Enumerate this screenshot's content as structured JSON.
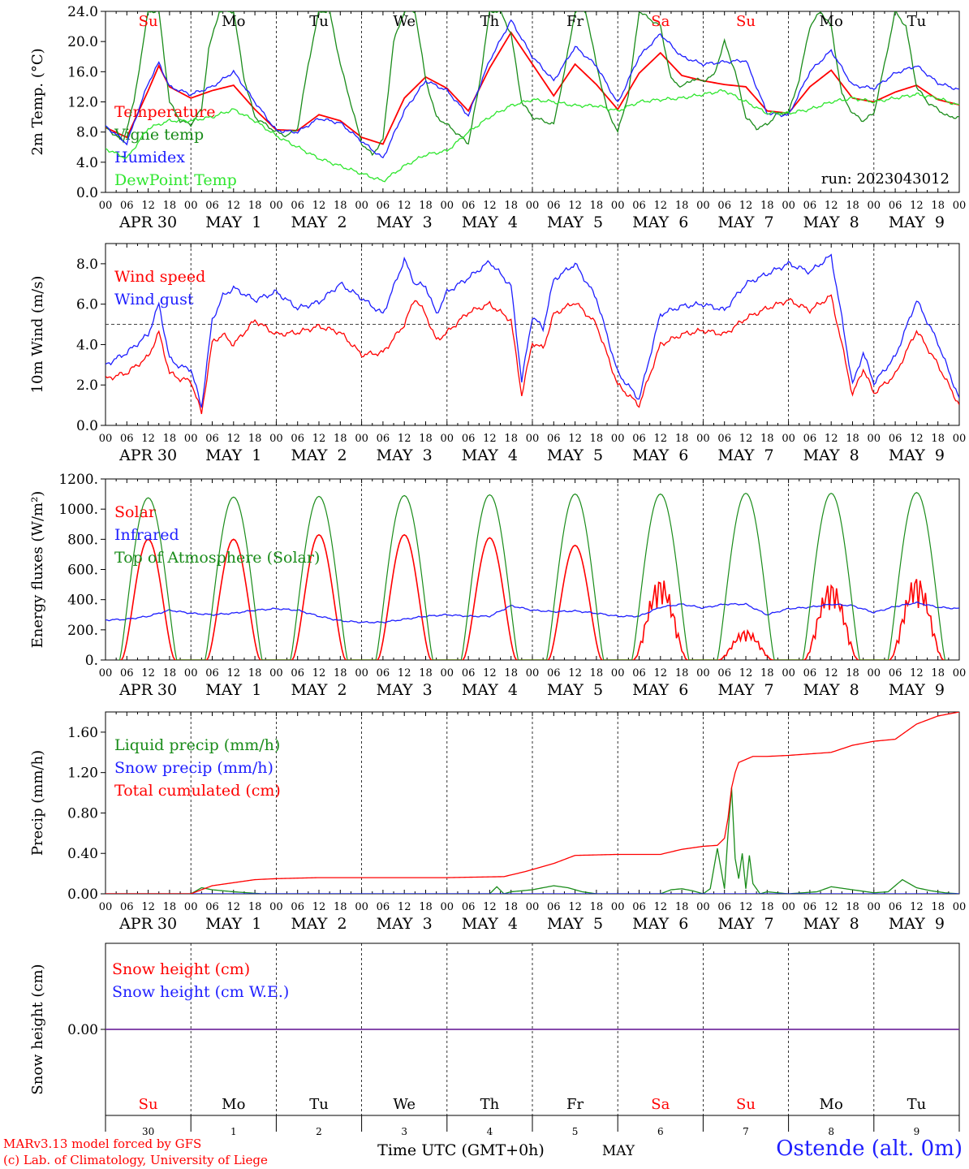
{
  "colors": {
    "red": "#ff0000",
    "green": "#1a8c1a",
    "blue": "#1e1eff",
    "lime": "#2ee62e",
    "purple": "#7030a0"
  },
  "x_axis": {
    "hour_ticks": [
      "00",
      "06",
      "12",
      "18"
    ],
    "date_labels": [
      "APR 30",
      "MAY  1",
      "MAY  2",
      "MAY  3",
      "MAY  4",
      "MAY  5",
      "MAY  6",
      "MAY  7",
      "MAY  8",
      "MAY  9"
    ],
    "weekdays": [
      "Su",
      "Mo",
      "Tu",
      "We",
      "Th",
      "Fr",
      "Sa",
      "Su",
      "Mo",
      "Tu"
    ],
    "weekday_colors": [
      "red",
      "black",
      "black",
      "black",
      "black",
      "black",
      "red",
      "red",
      "black",
      "black"
    ],
    "day_numbers": [
      "30",
      "1",
      "2",
      "3",
      "4",
      "5",
      "6",
      "7",
      "8",
      "9"
    ],
    "bottom_center_label": "Time UTC (GMT+0h)",
    "bottom_month": "MAY"
  },
  "footer": {
    "credit_line1": "MARv3.13 model forced by GFS",
    "credit_line2": "(c) Lab. of Climatology, University of Liege",
    "station": "Ostende (alt. 0m)"
  },
  "chart_data": [
    {
      "type": "line",
      "ylabel": "2m Temp. (°C)",
      "ylim": [
        0,
        24
      ],
      "yticks": [
        "0.0",
        "4.0",
        "8.0",
        "12.0",
        "16.0",
        "20.0",
        "24.0"
      ],
      "annotation": "run: 2023043012",
      "x_unit": "hours since APR 30 00 UTC",
      "series": [
        {
          "name": "Temperature",
          "color": "red",
          "x": [
            0,
            6,
            12,
            15,
            18,
            24,
            30,
            36,
            42,
            48,
            54,
            60,
            66,
            72,
            78,
            84,
            90,
            96,
            102,
            108,
            114,
            120,
            126,
            132,
            138,
            144,
            150,
            156,
            162,
            168,
            174,
            180,
            186,
            192,
            198,
            204,
            210,
            216,
            222,
            228,
            234,
            240
          ],
          "values": [
            8.6,
            7.3,
            13.5,
            16.8,
            14.0,
            12.5,
            13.5,
            14.2,
            11.0,
            8.3,
            8.2,
            10.3,
            9.5,
            7.3,
            6.4,
            12.5,
            15.3,
            13.8,
            10.8,
            16.5,
            21.2,
            17.0,
            12.8,
            17.0,
            14.3,
            11.0,
            15.8,
            18.5,
            15.5,
            14.8,
            14.3,
            14.0,
            10.8,
            10.5,
            14.0,
            16.2,
            12.5,
            12.0,
            13.3,
            14.2,
            12.3,
            11.6
          ]
        },
        {
          "name": "Vigne temp",
          "color": "green",
          "x": [
            0,
            5,
            8,
            12,
            15,
            18,
            21,
            24,
            27,
            29,
            32,
            36,
            39,
            42,
            48,
            51,
            54,
            57,
            60,
            63,
            66,
            72,
            75,
            78,
            81,
            84,
            87,
            90,
            93,
            96,
            102,
            105,
            108,
            111,
            114,
            117,
            120,
            126,
            129,
            132,
            135,
            138,
            141,
            144,
            147,
            150,
            153,
            156,
            159,
            162,
            165,
            168,
            171,
            174,
            177,
            180,
            183,
            186,
            189,
            192,
            195,
            198,
            201,
            204,
            207,
            210,
            213,
            216,
            219,
            222,
            225,
            228,
            231,
            234,
            237,
            240
          ],
          "values": [
            8.6,
            6.8,
            12.0,
            24.0,
            24.0,
            12.0,
            9.5,
            9.0,
            11.0,
            19.0,
            24.0,
            24.0,
            15.0,
            10.0,
            8.0,
            7.5,
            8.5,
            17.0,
            24.0,
            24.0,
            17.0,
            6.5,
            5.0,
            7.0,
            20.0,
            24.0,
            24.0,
            15.0,
            10.0,
            9.0,
            6.5,
            14.0,
            24.0,
            24.0,
            21.0,
            12.0,
            10.0,
            9.0,
            16.0,
            24.0,
            24.0,
            17.0,
            11.0,
            8.0,
            13.0,
            24.0,
            23.0,
            22.0,
            15.0,
            14.0,
            15.0,
            14.8,
            15.5,
            20.0,
            16.0,
            10.0,
            8.5,
            9.0,
            10.5,
            10.5,
            15.0,
            22.0,
            24.0,
            22.0,
            13.0,
            10.5,
            9.5,
            10.5,
            17.0,
            24.0,
            22.0,
            14.0,
            12.0,
            11.0,
            10.0,
            10.0
          ]
        },
        {
          "name": "Humidex",
          "color": "blue",
          "x": [
            0,
            6,
            12,
            15,
            18,
            24,
            30,
            36,
            42,
            48,
            54,
            60,
            66,
            72,
            78,
            84,
            90,
            96,
            102,
            108,
            114,
            120,
            126,
            132,
            138,
            144,
            150,
            156,
            162,
            168,
            174,
            180,
            186,
            192,
            198,
            204,
            210,
            216,
            222,
            228,
            234,
            240
          ],
          "values": [
            8.8,
            6.5,
            14.5,
            17.2,
            14.0,
            13.0,
            14.0,
            16.0,
            12.0,
            8.2,
            8.0,
            9.8,
            9.2,
            6.8,
            4.5,
            10.8,
            14.8,
            13.5,
            10.2,
            17.5,
            22.8,
            18.0,
            14.8,
            19.3,
            16.8,
            11.8,
            18.0,
            21.0,
            18.0,
            17.0,
            17.3,
            17.5,
            10.5,
            10.2,
            16.0,
            18.8,
            14.2,
            13.8,
            15.8,
            16.8,
            14.5,
            13.6
          ]
        },
        {
          "name": "DewPoint Temp",
          "color": "lime",
          "x": [
            0,
            6,
            12,
            18,
            24,
            30,
            36,
            42,
            48,
            54,
            60,
            66,
            72,
            78,
            84,
            90,
            96,
            102,
            108,
            114,
            120,
            126,
            132,
            138,
            144,
            150,
            156,
            162,
            168,
            174,
            180,
            186,
            192,
            198,
            204,
            210,
            216,
            222,
            228,
            234,
            240
          ],
          "values": [
            5.8,
            4.5,
            8.5,
            9.5,
            9.5,
            10.0,
            11.0,
            9.5,
            7.5,
            6.0,
            4.5,
            3.5,
            2.5,
            1.5,
            3.5,
            5.0,
            5.5,
            8.0,
            10.0,
            11.5,
            12.3,
            12.0,
            11.5,
            11.5,
            10.8,
            12.0,
            12.3,
            12.5,
            13.0,
            13.5,
            12.0,
            10.5,
            10.5,
            11.0,
            12.0,
            12.5,
            12.0,
            12.5,
            13.0,
            12.5,
            11.5
          ]
        }
      ]
    },
    {
      "type": "line",
      "ylabel": "10m Wind (m/s)",
      "ylim": [
        0,
        9
      ],
      "yticks": [
        "0.0",
        "2.0",
        "4.0",
        "6.0",
        "8.0"
      ],
      "reference_line": 5.0,
      "x_unit": "hours since APR 30 00 UTC",
      "series": [
        {
          "name": "Wind speed",
          "color": "red",
          "x": [
            0,
            6,
            12,
            15,
            18,
            21,
            24,
            27,
            30,
            33,
            36,
            42,
            48,
            54,
            60,
            66,
            72,
            78,
            84,
            87,
            90,
            93,
            96,
            102,
            108,
            114,
            117,
            120,
            123,
            126,
            132,
            138,
            144,
            150,
            156,
            162,
            168,
            174,
            180,
            186,
            192,
            198,
            204,
            207,
            210,
            213,
            216,
            222,
            228,
            234,
            240
          ],
          "values": [
            2.3,
            2.6,
            3.4,
            4.6,
            2.6,
            2.3,
            2.2,
            0.6,
            4.1,
            4.5,
            4.0,
            5.2,
            4.5,
            4.6,
            4.9,
            4.6,
            3.5,
            3.6,
            5.0,
            6.3,
            5.5,
            4.2,
            4.6,
            5.6,
            6.0,
            5.2,
            1.5,
            4.1,
            3.8,
            5.5,
            6.1,
            5.0,
            2.0,
            1.0,
            4.0,
            4.5,
            4.7,
            4.5,
            5.3,
            5.8,
            6.2,
            5.7,
            6.4,
            4.0,
            1.5,
            2.8,
            1.6,
            2.5,
            4.7,
            3.0,
            1.0
          ]
        },
        {
          "name": "Wind gust",
          "color": "blue",
          "x": [
            0,
            6,
            12,
            15,
            18,
            21,
            24,
            27,
            30,
            33,
            36,
            42,
            48,
            54,
            60,
            66,
            72,
            78,
            84,
            87,
            90,
            93,
            96,
            102,
            108,
            114,
            117,
            120,
            123,
            126,
            132,
            138,
            144,
            150,
            156,
            162,
            168,
            174,
            180,
            186,
            192,
            198,
            204,
            207,
            210,
            213,
            216,
            222,
            228,
            234,
            240
          ],
          "values": [
            3.0,
            3.6,
            4.5,
            6.0,
            3.3,
            2.9,
            2.8,
            0.9,
            5.2,
            6.4,
            6.8,
            6.2,
            6.6,
            5.8,
            6.1,
            7.0,
            6.3,
            5.5,
            8.2,
            7.0,
            6.9,
            5.5,
            6.6,
            7.3,
            8.1,
            6.9,
            2.2,
            5.4,
            4.8,
            7.2,
            8.0,
            6.3,
            2.6,
            1.3,
            5.5,
            5.9,
            6.0,
            5.7,
            7.0,
            7.5,
            8.0,
            7.6,
            8.4,
            5.3,
            2.0,
            3.6,
            2.1,
            3.4,
            6.2,
            4.1,
            1.3
          ]
        }
      ]
    },
    {
      "type": "line",
      "ylabel": "Energy fluxes (W/m²)",
      "ylim": [
        0,
        1200
      ],
      "yticks": [
        "0.",
        "200.",
        "400.",
        "600.",
        "800.",
        "1000.",
        "1200."
      ],
      "x_unit": "hours since APR 30 00 UTC",
      "daily_solar_peak": [
        800,
        800,
        830,
        830,
        810,
        760,
        550,
        200,
        520,
        560
      ],
      "daily_toa_peak": [
        1075,
        1080,
        1085,
        1090,
        1095,
        1100,
        1100,
        1105,
        1105,
        1110
      ],
      "series": [
        {
          "name": "Solar",
          "color": "red"
        },
        {
          "name": "Infrared",
          "color": "blue",
          "x": [
            0,
            6,
            12,
            18,
            24,
            30,
            36,
            42,
            48,
            54,
            60,
            66,
            72,
            78,
            84,
            90,
            96,
            102,
            108,
            114,
            120,
            126,
            132,
            138,
            144,
            150,
            156,
            162,
            168,
            174,
            180,
            186,
            192,
            198,
            204,
            210,
            216,
            222,
            228,
            234,
            240
          ],
          "values": [
            265,
            270,
            290,
            330,
            310,
            300,
            310,
            330,
            340,
            330,
            290,
            260,
            250,
            250,
            270,
            290,
            300,
            290,
            290,
            360,
            330,
            320,
            325,
            310,
            290,
            290,
            350,
            370,
            345,
            370,
            370,
            300,
            340,
            350,
            370,
            360,
            315,
            355,
            380,
            350,
            340
          ]
        },
        {
          "name": "Top of Atmosphere (Solar)",
          "color": "green"
        }
      ]
    },
    {
      "type": "line",
      "ylabel": "Precip (mm/h)",
      "ylim": [
        0,
        1.8
      ],
      "yticks": [
        "0.00",
        "0.40",
        "0.80",
        "1.20",
        "1.60"
      ],
      "x_unit": "hours since APR 30 00 UTC",
      "series": [
        {
          "name": "Liquid precip (mm/h)",
          "color": "green",
          "x": [
            0,
            24,
            27,
            30,
            33,
            36,
            40,
            44,
            96,
            108,
            110,
            112,
            114,
            120,
            126,
            130,
            134,
            138,
            144,
            156,
            159,
            162,
            165,
            168,
            170,
            172,
            174,
            175,
            176,
            177,
            178,
            179,
            180,
            181,
            182,
            183,
            184,
            186,
            192,
            200,
            204,
            208,
            212,
            216,
            220,
            224,
            226,
            228,
            232,
            236,
            240
          ],
          "values": [
            0,
            0,
            0.06,
            0.04,
            0.03,
            0.02,
            0.01,
            0,
            0,
            0,
            0.07,
            0,
            0.02,
            0.04,
            0.08,
            0.06,
            0.02,
            0,
            0,
            0,
            0.04,
            0.05,
            0.03,
            0,
            0.05,
            0.45,
            0.05,
            0.6,
            1.05,
            0.35,
            0.15,
            0.4,
            0.05,
            0.38,
            0.1,
            0.05,
            0,
            0.02,
            0,
            0.02,
            0.07,
            0.05,
            0.03,
            0.01,
            0.02,
            0.14,
            0.1,
            0.06,
            0.03,
            0.01,
            0
          ]
        },
        {
          "name": "Snow precip (mm/h)",
          "color": "blue",
          "x": [
            0,
            240
          ],
          "values": [
            0,
            0
          ]
        },
        {
          "name": "Total cumulated (cm)",
          "color": "red",
          "x": [
            0,
            24,
            27,
            30,
            36,
            42,
            48,
            60,
            96,
            112,
            118,
            126,
            132,
            144,
            156,
            162,
            168,
            172,
            174,
            175,
            176,
            177,
            178,
            180,
            182,
            186,
            192,
            204,
            210,
            216,
            222,
            228,
            234,
            240
          ],
          "values": [
            0,
            0,
            0.04,
            0.08,
            0.11,
            0.14,
            0.15,
            0.16,
            0.16,
            0.17,
            0.22,
            0.3,
            0.38,
            0.39,
            0.39,
            0.44,
            0.47,
            0.48,
            0.55,
            0.75,
            1.05,
            1.2,
            1.3,
            1.33,
            1.36,
            1.36,
            1.37,
            1.4,
            1.47,
            1.51,
            1.53,
            1.68,
            1.76,
            1.8
          ]
        }
      ]
    },
    {
      "type": "line",
      "ylabel": "Snow height (cm)",
      "ylim": [
        -1,
        1
      ],
      "yticks": [
        "0.00"
      ],
      "x_unit": "hours since APR 30 00 UTC",
      "series": [
        {
          "name": "Snow height (cm)",
          "color": "red",
          "x": [
            0,
            240
          ],
          "values": [
            0,
            0
          ]
        },
        {
          "name": "Snow height (cm W.E.)",
          "color": "blue",
          "x": [
            0,
            240
          ],
          "values": [
            0,
            0
          ]
        }
      ]
    }
  ]
}
